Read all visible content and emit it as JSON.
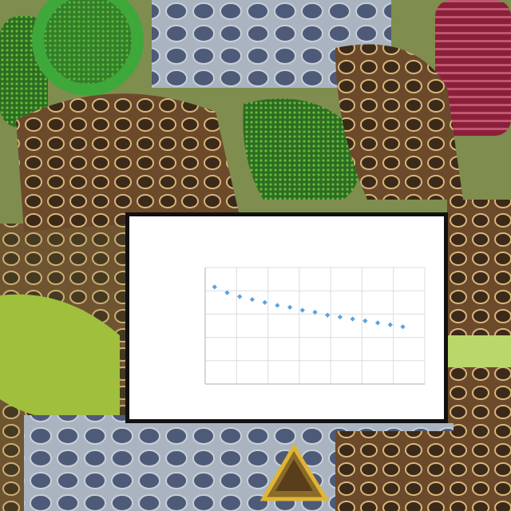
{
  "figure": {
    "title_line_1": "",
    "title_line_2": "",
    "x_axis_label": "",
    "y_axis_label": ""
  },
  "colors": {
    "point": "#5aa2dc",
    "grid": "#d9dde2",
    "axis": "#b8bec4",
    "panel_border": "#111111"
  },
  "chart_data": {
    "type": "scatter",
    "title": "",
    "xlabel": "",
    "ylabel": "",
    "x_ticks": [
      "",
      "",
      "",
      "",
      "",
      "",
      "",
      ""
    ],
    "y_ticks": [
      "",
      "",
      "",
      "",
      "",
      ""
    ],
    "xlim": [
      0,
      7
    ],
    "ylim": [
      0,
      6
    ],
    "grid": true,
    "series": [
      {
        "values": [
          {
            "x": 0.3,
            "y": 5.0
          },
          {
            "x": 0.7,
            "y": 4.7
          },
          {
            "x": 1.1,
            "y": 4.5
          },
          {
            "x": 1.5,
            "y": 4.35
          },
          {
            "x": 1.9,
            "y": 4.2
          },
          {
            "x": 2.3,
            "y": 4.05
          },
          {
            "x": 2.7,
            "y": 3.95
          },
          {
            "x": 3.1,
            "y": 3.8
          },
          {
            "x": 3.5,
            "y": 3.7
          },
          {
            "x": 3.9,
            "y": 3.55
          },
          {
            "x": 4.3,
            "y": 3.45
          },
          {
            "x": 4.7,
            "y": 3.35
          },
          {
            "x": 5.1,
            "y": 3.25
          },
          {
            "x": 5.5,
            "y": 3.15
          },
          {
            "x": 5.9,
            "y": 3.05
          },
          {
            "x": 6.3,
            "y": 2.95
          }
        ]
      }
    ]
  }
}
